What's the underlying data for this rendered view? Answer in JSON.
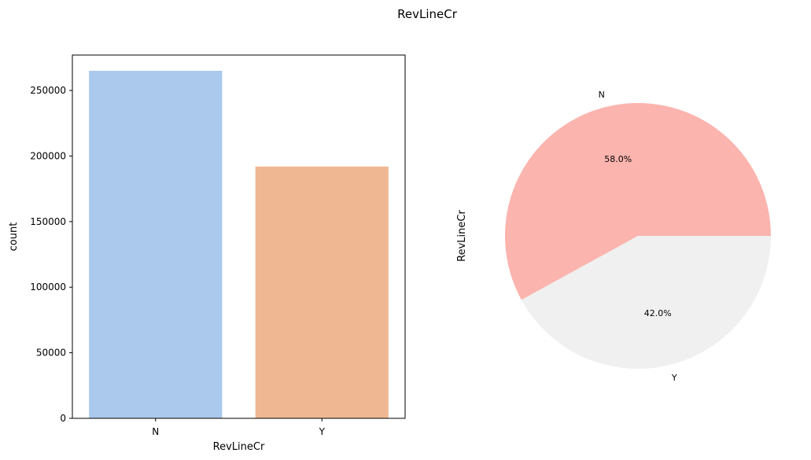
{
  "figure": {
    "title": "RevLineCr"
  },
  "chart_data": [
    {
      "type": "bar",
      "categories": [
        "N",
        "Y"
      ],
      "values": [
        265000,
        192000
      ],
      "colors": [
        "#abc9ec",
        "#efb893"
      ],
      "xlabel": "RevLineCr",
      "ylabel": "count",
      "ylim": [
        0,
        277000
      ],
      "yticks": [
        0,
        50000,
        100000,
        150000,
        200000,
        250000
      ],
      "ytick_labels": [
        "0",
        "50000",
        "100000",
        "150000",
        "200000",
        "250000"
      ],
      "grid": false
    },
    {
      "type": "pie",
      "labels": [
        "N",
        "Y"
      ],
      "percents": [
        58.0,
        42.0
      ],
      "autopct": [
        "58.0%",
        "42.0%"
      ],
      "colors": [
        "#fbb4ae",
        "#f0f0f0"
      ],
      "ylabel": "RevLineCr"
    }
  ]
}
